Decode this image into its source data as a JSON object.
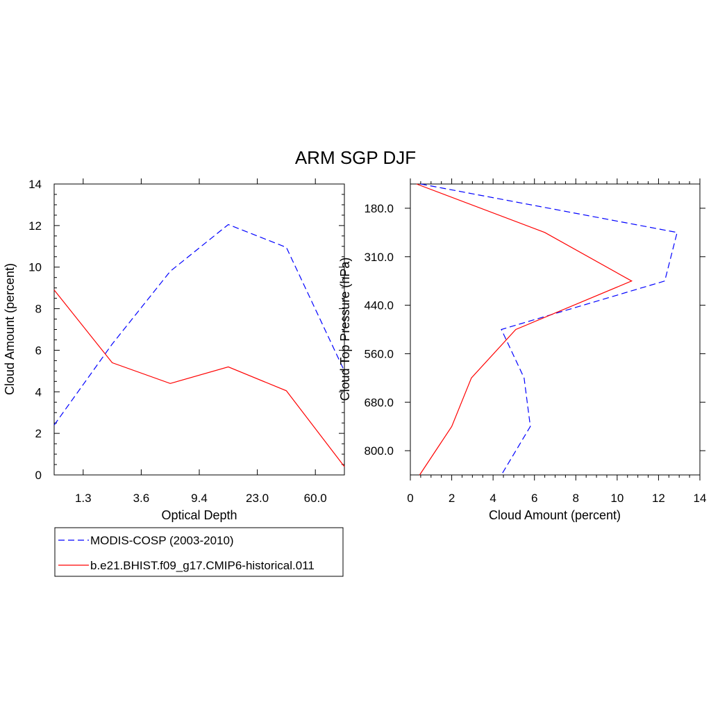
{
  "title": "ARM SGP DJF",
  "colors": {
    "obs": "#0000ff",
    "model": "#ff0000",
    "axis": "#000000"
  },
  "legend": {
    "items": [
      {
        "label": "MODIS-COSP (2003-2010)",
        "color": "#0000ff",
        "dash": "dashed"
      },
      {
        "label": "b.e21.BHIST.f09_g17.CMIP6-historical.011",
        "color": "#ff0000",
        "dash": "solid"
      }
    ]
  },
  "chart_data": [
    {
      "type": "line",
      "xlabel": "Optical Depth",
      "ylabel": "Cloud Amount (percent)",
      "x_tick_labels": [
        "1.3",
        "3.6",
        "9.4",
        "23.0",
        "60.0"
      ],
      "y_ticks": [
        0,
        2,
        4,
        6,
        8,
        10,
        12,
        14
      ],
      "ylim": [
        0,
        14
      ],
      "series": [
        {
          "name": "MODIS-COSP (2003-2010)",
          "values": [
            2.4,
            6.3,
            9.8,
            12.05,
            10.95,
            5.0
          ]
        },
        {
          "name": "b.e21.BHIST.f09_g17.CMIP6-historical.011",
          "values": [
            8.9,
            5.4,
            4.4,
            5.2,
            4.05,
            0.4
          ]
        }
      ]
    },
    {
      "type": "line",
      "xlabel": "Cloud Amount (percent)",
      "ylabel": "Cloud Top Pressure (hPa)",
      "x_ticks": [
        0,
        2,
        4,
        6,
        8,
        10,
        12,
        14
      ],
      "xlim": [
        0,
        14
      ],
      "y_tick_labels": [
        "180.0",
        "310.0",
        "440.0",
        "560.0",
        "680.0",
        "800.0"
      ],
      "series": [
        {
          "name": "MODIS-COSP (2003-2010)",
          "values": [
            0.5,
            12.9,
            12.3,
            4.4,
            5.5,
            5.8,
            4.4
          ]
        },
        {
          "name": "b.e21.BHIST.f09_g17.CMIP6-historical.011",
          "values": [
            0.3,
            6.5,
            10.7,
            5.1,
            2.95,
            2.0,
            0.45
          ]
        }
      ]
    }
  ]
}
